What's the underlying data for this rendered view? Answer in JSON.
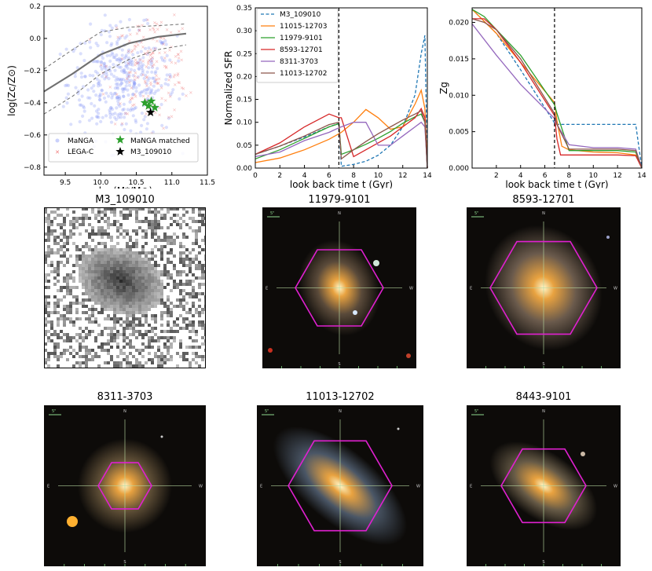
{
  "chart_data": [
    {
      "type": "scatter",
      "title": "",
      "xlabel": "log(M*/M⊙)",
      "ylabel": "log(Zc/Z⊙)",
      "xlim": [
        9.2,
        11.5
      ],
      "ylim": [
        -0.85,
        0.2
      ],
      "xticks": [
        "9.5",
        "10.0",
        "10.5",
        "11.0",
        "11.5"
      ],
      "yticks": [
        "0.2",
        "0.0",
        "−0.2",
        "−0.4",
        "−0.6",
        "−0.8"
      ],
      "legend": [
        "MaNGA",
        "LEGA-C",
        "MaNGA matched",
        "M3_109010"
      ],
      "colors": {
        "manga": "#7b8cf5",
        "legac": "#f07878",
        "matched": "#2ca02c",
        "target": "#000000",
        "relation": "#707070"
      },
      "relation_median": {
        "x": [
          9.2,
          9.6,
          10.0,
          10.4,
          10.8,
          11.2
        ],
        "y": [
          -0.33,
          -0.22,
          -0.1,
          -0.03,
          0.01,
          0.03
        ]
      },
      "relation_upper": {
        "x": [
          9.2,
          9.6,
          10.0,
          10.4,
          10.8,
          11.2
        ],
        "y": [
          -0.19,
          -0.07,
          0.04,
          0.07,
          0.08,
          0.09
        ]
      },
      "relation_lower": {
        "x": [
          9.2,
          9.6,
          10.0,
          10.4,
          10.8,
          11.2
        ],
        "y": [
          -0.47,
          -0.36,
          -0.22,
          -0.13,
          -0.07,
          -0.04
        ]
      },
      "matched_points": {
        "x": [
          10.62,
          10.67,
          10.71,
          10.76
        ],
        "y": [
          -0.4,
          -0.42,
          -0.39,
          -0.43
        ]
      },
      "target_point": {
        "x": 10.7,
        "y": -0.46
      }
    },
    {
      "type": "line",
      "xlabel": "look back time t (Gyr)",
      "ylabel": "Normalized SFR",
      "xlim": [
        0,
        14
      ],
      "ylim": [
        0,
        0.35
      ],
      "xticks": [
        "0",
        "2",
        "4",
        "6",
        "8",
        "10",
        "12",
        "14"
      ],
      "yticks": [
        "0.00",
        "0.05",
        "0.10",
        "0.15",
        "0.20",
        "0.25",
        "0.30",
        "0.35"
      ],
      "vline": 6.8,
      "legend_position": "upper-left",
      "series": [
        {
          "name": "M3_109010",
          "color": "#1f77b4",
          "dashed": true,
          "x": [
            0,
            2,
            4,
            6,
            6.8,
            7,
            8,
            9,
            10,
            11,
            12,
            13,
            13.5,
            13.8,
            14
          ],
          "y": [
            0.03,
            0.048,
            0.068,
            0.09,
            0.098,
            0.004,
            0.008,
            0.015,
            0.028,
            0.05,
            0.09,
            0.16,
            0.25,
            0.29,
            0.0
          ]
        },
        {
          "name": "11015-12703",
          "color": "#ff7f0e",
          "dashed": false,
          "x": [
            0,
            2,
            4,
            6,
            6.8,
            7,
            8,
            9,
            10,
            11,
            12,
            13,
            13.5,
            13.8,
            14
          ],
          "y": [
            0.012,
            0.022,
            0.04,
            0.063,
            0.075,
            0.078,
            0.1,
            0.128,
            0.11,
            0.085,
            0.09,
            0.14,
            0.17,
            0.13,
            0.0
          ]
        },
        {
          "name": "11979-9101",
          "color": "#2ca02c",
          "dashed": false,
          "x": [
            0,
            2,
            4,
            6,
            6.8,
            7,
            8,
            9,
            10,
            11,
            12,
            13,
            13.5,
            13.8,
            14
          ],
          "y": [
            0.02,
            0.04,
            0.065,
            0.09,
            0.097,
            0.03,
            0.04,
            0.052,
            0.065,
            0.08,
            0.098,
            0.112,
            0.118,
            0.1,
            0.0
          ]
        },
        {
          "name": "8593-12701",
          "color": "#d62728",
          "dashed": false,
          "x": [
            0,
            2,
            4,
            6,
            6.8,
            7,
            8,
            9,
            10,
            11,
            12,
            13,
            13.5,
            13.8,
            14
          ],
          "y": [
            0.03,
            0.055,
            0.09,
            0.118,
            0.11,
            0.11,
            0.025,
            0.04,
            0.055,
            0.07,
            0.09,
            0.11,
            0.13,
            0.11,
            0.0
          ]
        },
        {
          "name": "8311-3703",
          "color": "#9467bd",
          "dashed": false,
          "x": [
            0,
            2,
            4,
            6,
            6.8,
            7,
            8,
            9,
            10,
            11,
            12,
            13,
            13.5,
            13.8,
            14
          ],
          "y": [
            0.025,
            0.035,
            0.06,
            0.078,
            0.088,
            0.09,
            0.1,
            0.1,
            0.05,
            0.05,
            0.07,
            0.09,
            0.1,
            0.09,
            0.0
          ]
        },
        {
          "name": "11013-12702",
          "color": "#8c564b",
          "dashed": false,
          "x": [
            0,
            2,
            4,
            6,
            6.8,
            7,
            8,
            9,
            10,
            11,
            12,
            13,
            13.5,
            13.8,
            14
          ],
          "y": [
            0.03,
            0.048,
            0.07,
            0.095,
            0.1,
            0.02,
            0.04,
            0.058,
            0.075,
            0.09,
            0.105,
            0.118,
            0.125,
            0.1,
            0.0
          ]
        }
      ]
    },
    {
      "type": "line",
      "xlabel": "look back time t (Gyr)",
      "ylabel": "Zg",
      "xlim": [
        0,
        14
      ],
      "ylim": [
        0,
        0.022
      ],
      "xticks": [
        "2",
        "4",
        "6",
        "8",
        "10",
        "12",
        "14"
      ],
      "yticks": [
        "0.000",
        "0.005",
        "0.010",
        "0.015",
        "0.020"
      ],
      "vline": 6.8,
      "series": [
        {
          "name": "M3_109010",
          "color": "#1f77b4",
          "dashed": true,
          "x": [
            0,
            2,
            4,
            6.8,
            7,
            8,
            10,
            12,
            13.5,
            14
          ],
          "y": [
            0.0218,
            0.0185,
            0.0135,
            0.0062,
            0.006,
            0.006,
            0.006,
            0.006,
            0.006,
            0.0
          ]
        },
        {
          "name": "11015-12703",
          "color": "#ff7f0e",
          "dashed": false,
          "x": [
            0,
            2,
            4,
            6.8,
            7,
            7.4,
            8,
            10,
            12,
            13.5,
            14
          ],
          "y": [
            0.0218,
            0.0185,
            0.0145,
            0.009,
            0.0065,
            0.003,
            0.0025,
            0.0022,
            0.0021,
            0.0018,
            0.0
          ]
        },
        {
          "name": "11979-9101",
          "color": "#2ca02c",
          "dashed": false,
          "x": [
            0,
            1,
            2,
            4,
            6.8,
            7,
            8,
            10,
            12,
            13.5,
            14
          ],
          "y": [
            0.0218,
            0.0208,
            0.019,
            0.0155,
            0.0087,
            0.0075,
            0.0024,
            0.0024,
            0.0024,
            0.0022,
            0.0
          ]
        },
        {
          "name": "8593-12701",
          "color": "#d62728",
          "dashed": false,
          "x": [
            0,
            1,
            2,
            4,
            6.8,
            7,
            7.3,
            10,
            12,
            13.5,
            14
          ],
          "y": [
            0.0205,
            0.0205,
            0.019,
            0.0145,
            0.0072,
            0.004,
            0.0018,
            0.0018,
            0.0018,
            0.0017,
            0.0
          ]
        },
        {
          "name": "8311-3703",
          "color": "#9467bd",
          "dashed": false,
          "x": [
            0,
            2,
            4,
            6.8,
            7,
            8,
            10,
            12,
            13.5,
            14
          ],
          "y": [
            0.0198,
            0.0155,
            0.0115,
            0.0068,
            0.006,
            0.0032,
            0.0028,
            0.0028,
            0.0026,
            0.0
          ]
        },
        {
          "name": "11013-12702",
          "color": "#8c564b",
          "dashed": false,
          "x": [
            0,
            1,
            2,
            4,
            6.8,
            7,
            8,
            10,
            12,
            13.5,
            14
          ],
          "y": [
            0.0205,
            0.02,
            0.019,
            0.015,
            0.0075,
            0.006,
            0.0026,
            0.0026,
            0.0026,
            0.0024,
            0.0
          ]
        }
      ]
    }
  ],
  "images": [
    {
      "title": "M3_109010",
      "kind": "pixelated"
    },
    {
      "title": "11979-9101",
      "kind": "sdss",
      "scale_label": "5\"",
      "compass": [
        "N",
        "E",
        "W",
        "S"
      ]
    },
    {
      "title": "8593-12701",
      "kind": "sdss",
      "scale_label": "5\"",
      "compass": [
        "N",
        "E",
        "W",
        "S"
      ]
    },
    {
      "title": "8311-3703",
      "kind": "sdss",
      "scale_label": "5\"",
      "compass": [
        "N",
        "E",
        "W",
        "S"
      ]
    },
    {
      "title": "11013-12702",
      "kind": "sdss",
      "scale_label": "5\"",
      "compass": [
        "N",
        "E",
        "W",
        "S"
      ]
    },
    {
      "title": "8443-9101",
      "kind": "sdss",
      "scale_label": "5\"",
      "compass": [
        "N",
        "E",
        "W",
        "S"
      ]
    }
  ]
}
